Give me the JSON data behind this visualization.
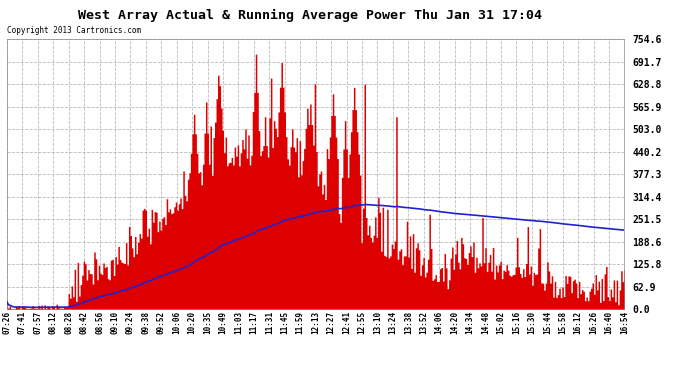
{
  "title": "West Array Actual & Running Average Power Thu Jan 31 17:04",
  "copyright": "Copyright 2013 Cartronics.com",
  "ylabel_right_values": [
    754.6,
    691.7,
    628.8,
    565.9,
    503.0,
    440.2,
    377.3,
    314.4,
    251.5,
    188.6,
    125.8,
    62.9,
    0.0
  ],
  "ymax": 754.6,
  "ymin": 0.0,
  "plot_bg_color": "#ffffff",
  "grid_color": "#aaaaaa",
  "bar_color": "#dd0000",
  "avg_color": "#2222cc",
  "legend_avg_bg": "#0000cc",
  "legend_west_bg": "#cc0000",
  "xtick_labels": [
    "07:26",
    "07:41",
    "07:57",
    "08:12",
    "08:28",
    "08:42",
    "08:56",
    "09:10",
    "09:24",
    "09:38",
    "09:52",
    "10:06",
    "10:20",
    "10:35",
    "10:49",
    "11:03",
    "11:17",
    "11:31",
    "11:45",
    "11:59",
    "12:13",
    "12:27",
    "12:41",
    "12:55",
    "13:10",
    "13:24",
    "13:38",
    "13:52",
    "14:06",
    "14:20",
    "14:34",
    "14:48",
    "15:02",
    "15:16",
    "15:30",
    "15:44",
    "15:58",
    "16:12",
    "16:26",
    "16:40",
    "16:54"
  ],
  "n_points": 410
}
